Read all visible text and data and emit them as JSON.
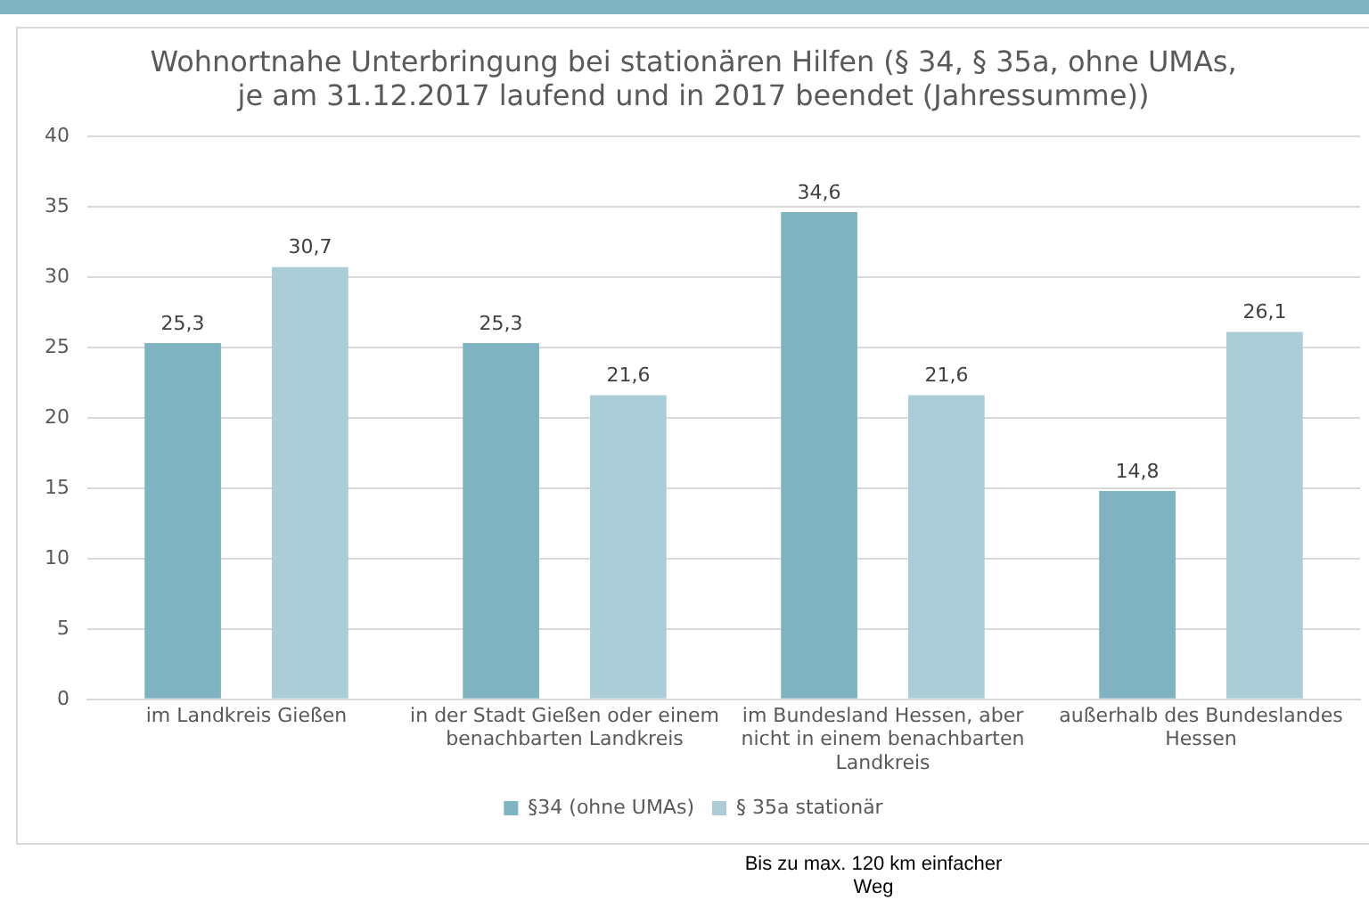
{
  "chart_data": {
    "type": "bar",
    "title": "Wohnortnahe Unterbringung bei stationären Hilfen (§ 34, § 35a, ohne UMAs, je am 31.12.2017 laufend und in 2017 beendet (Jahressumme))",
    "categories": [
      "im Landkreis Gießen",
      "in der Stadt Gießen oder einem benachbarten Landkreis",
      "im Bundesland Hessen, aber nicht in einem benachbarten Landkreis",
      "außerhalb des Bundeslandes Hessen"
    ],
    "series": [
      {
        "name": "§34 (ohne UMAs)",
        "color": "#7fb3c2",
        "values": [
          25.3,
          25.3,
          34.6,
          14.8
        ],
        "value_labels": [
          "25,3",
          "25,3",
          "34,6",
          "14,8"
        ]
      },
      {
        "name": "§ 35a stationär",
        "color": "#abcdd7",
        "values": [
          30.7,
          21.6,
          21.6,
          26.1
        ],
        "value_labels": [
          "30,7",
          "21,6",
          "21,6",
          "26,1"
        ]
      }
    ],
    "ylim": [
      0,
      40
    ],
    "yticks": [
      0,
      5,
      10,
      15,
      20,
      25,
      30,
      35,
      40
    ],
    "grid": "y",
    "legend": "bottom",
    "annotations": [
      "Bis zu max. 120 km einfacher Weg"
    ]
  }
}
